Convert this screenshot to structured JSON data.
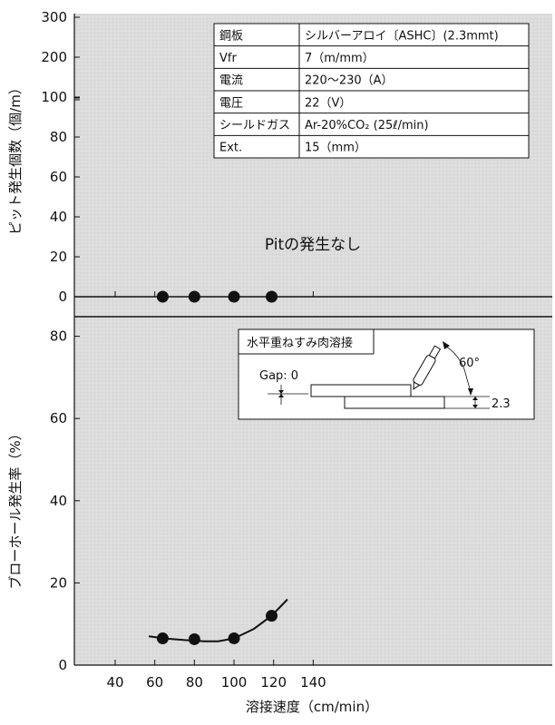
{
  "chart_data": [
    {
      "type": "scatter",
      "title": "",
      "xlabel": "",
      "ylabel": "ピット発生個数（個/m）",
      "xlim": [
        30,
        150
      ],
      "ylim": [
        0,
        300
      ],
      "y_axis_break": true,
      "yticks": [
        "0",
        "20",
        "40",
        "60",
        "80",
        "100",
        "200",
        "300"
      ],
      "series": [
        {
          "x": [
            64,
            80,
            100,
            119
          ],
          "y": [
            0,
            0,
            0,
            0
          ]
        }
      ],
      "annotation": "Pitの発生なし",
      "conditions_table": {
        "rows": [
          {
            "label": "鋼板",
            "value": "シルバーアロイ〔ASHC〕(2.3mmt)"
          },
          {
            "label": "Vfr",
            "value": "7（m/mm）"
          },
          {
            "label": "電流",
            "value": "220〜230（A）"
          },
          {
            "label": "電圧",
            "value": "22（V）"
          },
          {
            "label": "シールドガス",
            "value": "Ar-20%CO₂ (25ℓ/min)"
          },
          {
            "label": "Ext.",
            "value": "15（mm）"
          }
        ]
      },
      "grid": false
    },
    {
      "type": "line",
      "title": "",
      "xlabel": "溶接速度（cm/min）",
      "ylabel": "ブローホール発生率（%）",
      "xlim": [
        30,
        150
      ],
      "ylim": [
        0,
        85
      ],
      "xticks": [
        "40",
        "60",
        "80",
        "100",
        "120",
        "140"
      ],
      "yticks": [
        "0",
        "20",
        "40",
        "60",
        "80"
      ],
      "series": [
        {
          "x": [
            64,
            80,
            100,
            119
          ],
          "y": [
            6.5,
            6.3,
            6.5,
            12
          ]
        }
      ],
      "trend_curve": {
        "x": [
          57,
          65,
          75,
          85,
          92,
          100,
          110,
          119,
          127
        ],
        "y": [
          7,
          6.5,
          6.1,
          5.8,
          5.8,
          6.5,
          8.8,
          12,
          16
        ]
      },
      "inset": {
        "title": "水平重ねすみ肉溶接",
        "gap_label": "Gap: 0",
        "angle_label": "60°",
        "thickness_label": "2.3"
      },
      "grid": false
    }
  ]
}
